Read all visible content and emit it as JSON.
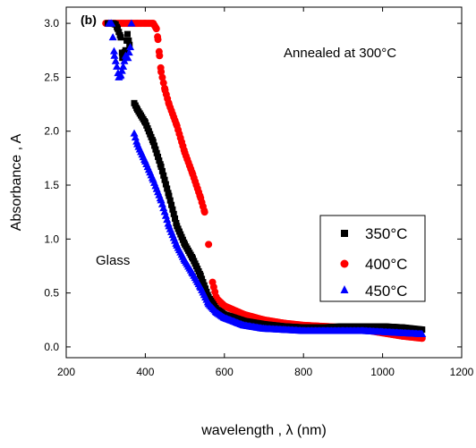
{
  "chart_data": {
    "type": "scatter",
    "panel_label": "(b)",
    "annotation": "Annealed at  300°C",
    "substrate_label": "Glass",
    "xlabel": "wavelength , λ (nm)",
    "ylabel": "Absorbance , A",
    "xlim": [
      200,
      1200
    ],
    "ylim": [
      -0.1,
      3.15
    ],
    "x_ticks": [
      "200",
      "400",
      "600",
      "800",
      "1000",
      "1200"
    ],
    "y_ticks": [
      "0.0",
      "0.5",
      "1.0",
      "1.5",
      "2.0",
      "2.5",
      "3.0"
    ],
    "legend_position": "lower-right",
    "series": [
      {
        "name": "350°C",
        "marker": "square",
        "color": "#000000",
        "points": [
          [
            305,
            3.0
          ],
          [
            310,
            3.0
          ],
          [
            318,
            3.0
          ],
          [
            325,
            2.99
          ],
          [
            330,
            2.95
          ],
          [
            338,
            2.87
          ],
          [
            342,
            2.68
          ],
          [
            350,
            2.75
          ],
          [
            355,
            2.9
          ],
          [
            360,
            2.8
          ],
          [
            372,
            2.26
          ],
          [
            380,
            2.2
          ],
          [
            400,
            2.08
          ],
          [
            420,
            1.9
          ],
          [
            440,
            1.67
          ],
          [
            460,
            1.4
          ],
          [
            480,
            1.12
          ],
          [
            500,
            0.95
          ],
          [
            520,
            0.82
          ],
          [
            540,
            0.66
          ],
          [
            560,
            0.46
          ],
          [
            580,
            0.35
          ],
          [
            600,
            0.3
          ],
          [
            650,
            0.24
          ],
          [
            700,
            0.21
          ],
          [
            750,
            0.19
          ],
          [
            800,
            0.18
          ],
          [
            850,
            0.18
          ],
          [
            900,
            0.19
          ],
          [
            950,
            0.19
          ],
          [
            1000,
            0.19
          ],
          [
            1050,
            0.18
          ],
          [
            1100,
            0.16
          ]
        ]
      },
      {
        "name": "400°C",
        "marker": "circle",
        "color": "#ff0000",
        "points": [
          [
            300,
            3.0
          ],
          [
            320,
            3.0
          ],
          [
            340,
            3.0
          ],
          [
            360,
            3.0
          ],
          [
            380,
            3.0
          ],
          [
            400,
            3.0
          ],
          [
            420,
            3.0
          ],
          [
            428,
            2.95
          ],
          [
            432,
            2.85
          ],
          [
            436,
            2.7
          ],
          [
            440,
            2.55
          ],
          [
            450,
            2.38
          ],
          [
            460,
            2.25
          ],
          [
            480,
            2.05
          ],
          [
            500,
            1.8
          ],
          [
            520,
            1.6
          ],
          [
            540,
            1.38
          ],
          [
            550,
            1.25
          ],
          [
            560,
            0.95
          ],
          [
            570,
            0.6
          ],
          [
            580,
            0.45
          ],
          [
            600,
            0.38
          ],
          [
            650,
            0.3
          ],
          [
            700,
            0.25
          ],
          [
            750,
            0.22
          ],
          [
            800,
            0.2
          ],
          [
            850,
            0.19
          ],
          [
            900,
            0.18
          ],
          [
            950,
            0.16
          ],
          [
            1000,
            0.13
          ],
          [
            1050,
            0.1
          ],
          [
            1100,
            0.08
          ]
        ]
      },
      {
        "name": "450°C",
        "marker": "triangle",
        "color": "#0000ff",
        "points": [
          [
            308,
            3.0
          ],
          [
            315,
            3.0
          ],
          [
            322,
            2.7
          ],
          [
            328,
            2.6
          ],
          [
            333,
            2.5
          ],
          [
            338,
            2.52
          ],
          [
            344,
            2.6
          ],
          [
            350,
            2.7
          ],
          [
            356,
            2.68
          ],
          [
            362,
            2.78
          ],
          [
            365,
            3.0
          ],
          [
            372,
            1.98
          ],
          [
            380,
            1.88
          ],
          [
            400,
            1.72
          ],
          [
            420,
            1.55
          ],
          [
            440,
            1.36
          ],
          [
            460,
            1.12
          ],
          [
            480,
            0.94
          ],
          [
            500,
            0.8
          ],
          [
            520,
            0.68
          ],
          [
            540,
            0.55
          ],
          [
            560,
            0.4
          ],
          [
            580,
            0.32
          ],
          [
            600,
            0.27
          ],
          [
            650,
            0.2
          ],
          [
            700,
            0.17
          ],
          [
            750,
            0.16
          ],
          [
            800,
            0.15
          ],
          [
            850,
            0.15
          ],
          [
            900,
            0.15
          ],
          [
            950,
            0.15
          ],
          [
            1000,
            0.14
          ],
          [
            1050,
            0.13
          ],
          [
            1100,
            0.12
          ]
        ]
      }
    ]
  }
}
